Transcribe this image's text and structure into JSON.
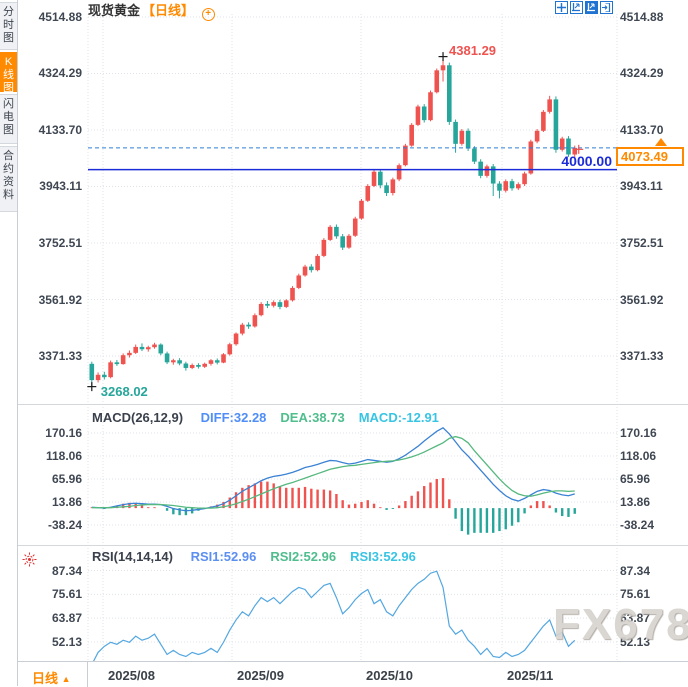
{
  "header": {
    "title": "现货黄金",
    "period_tag": "【日线】",
    "add_symbol": "+"
  },
  "toolbar": {
    "icons": [
      "crosshair-move",
      "scale-axis",
      "scale-axis-active",
      "exit-fullscreen"
    ]
  },
  "sidebar": {
    "tabs": [
      {
        "label": "分时图",
        "active": false
      },
      {
        "label": "K线图",
        "active": true
      },
      {
        "label": "闪电图",
        "active": false
      },
      {
        "label": "合约资料",
        "active": false
      }
    ]
  },
  "bottom": {
    "period_label": "日线",
    "dropdown_arrow": "▲"
  },
  "watermark": "FX678",
  "colors": {
    "up": "#ef5350",
    "down": "#26a69a",
    "diff_line": "#3b82d4",
    "dea_line": "#55b87e",
    "rsi_line": "#54a7e0",
    "hline": "#1c2cd8",
    "dash_line": "#2f7fd6",
    "accent": "#ff8a00",
    "axis_text": "#3f4753",
    "grid": "#dfe3e8",
    "separator": "#d4d8dd",
    "marker": "#1a1a1a"
  },
  "chart_data": [
    {
      "type": "candlestick",
      "title": "现货黄金 日线",
      "y_ticks": [
        "4514.88",
        "4324.29",
        "4133.70",
        "3943.11",
        "3752.51",
        "3561.92",
        "3371.33"
      ],
      "x_ticks": [
        "2025/08",
        "2025/09",
        "2025/10",
        "2025/11"
      ],
      "hline": {
        "value": 4000,
        "label": "4000.00"
      },
      "last_price": {
        "value": 4073.49,
        "label": "4073.49"
      },
      "high_annotation": {
        "value": 4381.29,
        "label": "4381.29"
      },
      "low_annotation": {
        "value": 3268.02,
        "label": "3268.02"
      },
      "candles": [
        [
          3345,
          3352,
          3268,
          3290
        ],
        [
          3290,
          3316,
          3282,
          3308
        ],
        [
          3308,
          3318,
          3292,
          3300
        ],
        [
          3300,
          3356,
          3296,
          3350
        ],
        [
          3350,
          3358,
          3338,
          3344
        ],
        [
          3344,
          3380,
          3342,
          3374
        ],
        [
          3374,
          3390,
          3366,
          3382
        ],
        [
          3382,
          3410,
          3378,
          3402
        ],
        [
          3402,
          3414,
          3388,
          3394
        ],
        [
          3394,
          3406,
          3386,
          3401
        ],
        [
          3401,
          3416,
          3396,
          3410
        ],
        [
          3410,
          3414,
          3374,
          3380
        ],
        [
          3380,
          3386,
          3344,
          3350
        ],
        [
          3350,
          3362,
          3342,
          3357
        ],
        [
          3357,
          3364,
          3340,
          3346
        ],
        [
          3346,
          3352,
          3322,
          3331
        ],
        [
          3331,
          3346,
          3327,
          3341
        ],
        [
          3341,
          3347,
          3329,
          3335
        ],
        [
          3335,
          3349,
          3331,
          3345
        ],
        [
          3345,
          3361,
          3339,
          3357
        ],
        [
          3357,
          3363,
          3343,
          3349
        ],
        [
          3349,
          3381,
          3347,
          3377
        ],
        [
          3377,
          3416,
          3373,
          3411
        ],
        [
          3411,
          3451,
          3406,
          3447
        ],
        [
          3447,
          3483,
          3441,
          3477
        ],
        [
          3477,
          3485,
          3463,
          3471
        ],
        [
          3471,
          3515,
          3467,
          3509
        ],
        [
          3509,
          3553,
          3505,
          3547
        ],
        [
          3547,
          3557,
          3533,
          3541
        ],
        [
          3541,
          3559,
          3535,
          3553
        ],
        [
          3553,
          3561,
          3529,
          3537
        ],
        [
          3537,
          3563,
          3533,
          3559
        ],
        [
          3559,
          3607,
          3555,
          3601
        ],
        [
          3601,
          3649,
          3597,
          3643
        ],
        [
          3643,
          3679,
          3639,
          3673
        ],
        [
          3673,
          3681,
          3653,
          3661
        ],
        [
          3661,
          3715,
          3657,
          3709
        ],
        [
          3709,
          3769,
          3705,
          3763
        ],
        [
          3763,
          3813,
          3759,
          3807
        ],
        [
          3807,
          3815,
          3767,
          3775
        ],
        [
          3775,
          3783,
          3729,
          3737
        ],
        [
          3737,
          3783,
          3733,
          3777
        ],
        [
          3777,
          3841,
          3773,
          3835
        ],
        [
          3835,
          3901,
          3831,
          3895
        ],
        [
          3895,
          3951,
          3891,
          3945
        ],
        [
          3945,
          3999,
          3941,
          3993
        ],
        [
          3993,
          4001,
          3937,
          3947
        ],
        [
          3947,
          3957,
          3911,
          3921
        ],
        [
          3921,
          3973,
          3913,
          3967
        ],
        [
          3967,
          4021,
          3961,
          4015
        ],
        [
          4015,
          4087,
          4011,
          4081
        ],
        [
          4081,
          4157,
          4077,
          4151
        ],
        [
          4151,
          4219,
          4147,
          4213
        ],
        [
          4213,
          4221,
          4159,
          4167
        ],
        [
          4167,
          4267,
          4163,
          4261
        ],
        [
          4261,
          4341,
          4257,
          4335
        ],
        [
          4335,
          4381.29,
          4297,
          4352
        ],
        [
          4352,
          4361,
          4151,
          4161
        ],
        [
          4161,
          4169,
          4057,
          4087
        ],
        [
          4087,
          4137,
          4081,
          4131
        ],
        [
          4131,
          4139,
          4063,
          4071
        ],
        [
          4071,
          4079,
          4019,
          4027
        ],
        [
          4027,
          4035,
          3971,
          3979
        ],
        [
          3979,
          4017,
          3973,
          4011
        ],
        [
          4011,
          4019,
          3911,
          3953
        ],
        [
          3953,
          3961,
          3903,
          3929
        ],
        [
          3929,
          3967,
          3923,
          3961
        ],
        [
          3961,
          3969,
          3929,
          3937
        ],
        [
          3937,
          3957,
          3931,
          3951
        ],
        [
          3951,
          3993,
          3945,
          3987
        ],
        [
          3987,
          4101,
          3983,
          4095
        ],
        [
          4095,
          4137,
          4089,
          4131
        ],
        [
          4131,
          4201,
          4127,
          4195
        ],
        [
          4195,
          4249,
          4189,
          4237
        ],
        [
          4237,
          4247,
          4057,
          4067
        ],
        [
          4067,
          4111,
          4061,
          4105
        ],
        [
          4105,
          4113,
          4043,
          4051
        ],
        [
          4051,
          4081,
          4041,
          4073.49
        ]
      ]
    },
    {
      "type": "macd",
      "label": "MACD(26,12,9)",
      "readouts": [
        {
          "text": "DIFF:32.28",
          "color": "#4f8ef7"
        },
        {
          "text": "DEA:38.73",
          "color": "#4fbd8d"
        },
        {
          "text": "MACD:-12.91",
          "color": "#38c4e3"
        }
      ],
      "y_ticks": [
        "170.16",
        "118.06",
        "65.96",
        "13.86",
        "-38.24"
      ],
      "diff": [
        2,
        1,
        0,
        2,
        5,
        8,
        10,
        11,
        10,
        9,
        9,
        8,
        4,
        -1,
        -4,
        -6,
        -5,
        -3,
        -1,
        2,
        5,
        10,
        18,
        28,
        38,
        46,
        54,
        62,
        68,
        72,
        74,
        77,
        81,
        86,
        92,
        95,
        99,
        104,
        108,
        107,
        103,
        100,
        102,
        106,
        110,
        108,
        106,
        104,
        106,
        112,
        120,
        130,
        140,
        152,
        163,
        174,
        182,
        168,
        150,
        132,
        118,
        102,
        86,
        70,
        54,
        40,
        28,
        20,
        16,
        22,
        30,
        38,
        42,
        40,
        34,
        30,
        28,
        32.28
      ],
      "dea": [
        1,
        1,
        1,
        1,
        2,
        3,
        4,
        6,
        7,
        8,
        8,
        8,
        7,
        6,
        4,
        2,
        1,
        0,
        0,
        0,
        1,
        3,
        6,
        10,
        15,
        20,
        26,
        32,
        38,
        44,
        49,
        54,
        58,
        63,
        68,
        73,
        78,
        83,
        88,
        91,
        94,
        96,
        97,
        99,
        101,
        103,
        105,
        106,
        107,
        109,
        112,
        116,
        121,
        127,
        134,
        141,
        148,
        158,
        162,
        158,
        148,
        130,
        114,
        98,
        82,
        66,
        52,
        40,
        32,
        28,
        27,
        30,
        34,
        37,
        39,
        39,
        38,
        38.73
      ],
      "hist": [
        2,
        0,
        -2,
        2,
        6,
        10,
        12,
        10,
        6,
        2,
        2,
        0,
        -6,
        -14,
        -16,
        -16,
        -12,
        -6,
        -2,
        4,
        8,
        14,
        24,
        36,
        46,
        52,
        56,
        60,
        60,
        56,
        50,
        46,
        46,
        46,
        48,
        44,
        42,
        42,
        40,
        32,
        18,
        8,
        10,
        14,
        18,
        10,
        2,
        -4,
        -2,
        6,
        16,
        28,
        38,
        50,
        58,
        66,
        68,
        20,
        -24,
        -52,
        -60,
        -56,
        -56,
        -56,
        -56,
        -52,
        -48,
        -40,
        -32,
        -12,
        6,
        16,
        16,
        6,
        -10,
        -18,
        -20,
        -12.91
      ]
    },
    {
      "type": "line",
      "label": "RSI(14,14,14)",
      "readouts": [
        {
          "text": "RSI1:52.96",
          "color": "#5b8ff0"
        },
        {
          "text": "RSI2:52.96",
          "color": "#4fbd8d"
        },
        {
          "text": "RSI3:52.96",
          "color": "#38c4e3"
        }
      ],
      "y_ticks": [
        "87.34",
        "75.61",
        "63.87",
        "52.13"
      ],
      "values": [
        41,
        47,
        50,
        52,
        51,
        53,
        52,
        55,
        53,
        54,
        56,
        51,
        46,
        48,
        46,
        45,
        47,
        46,
        47,
        49,
        47,
        52,
        58,
        63,
        67,
        65,
        70,
        74,
        72,
        74,
        71,
        74,
        77,
        79,
        78,
        74,
        77,
        80,
        81,
        74,
        66,
        69,
        73,
        76,
        78,
        71,
        73,
        67,
        65,
        70,
        74,
        78,
        81,
        83,
        86,
        87,
        79,
        60,
        56,
        58,
        53,
        50,
        46,
        49,
        45,
        44.5,
        47,
        45,
        46,
        48,
        52,
        56,
        60,
        63,
        55,
        57,
        50,
        52.96
      ]
    }
  ]
}
